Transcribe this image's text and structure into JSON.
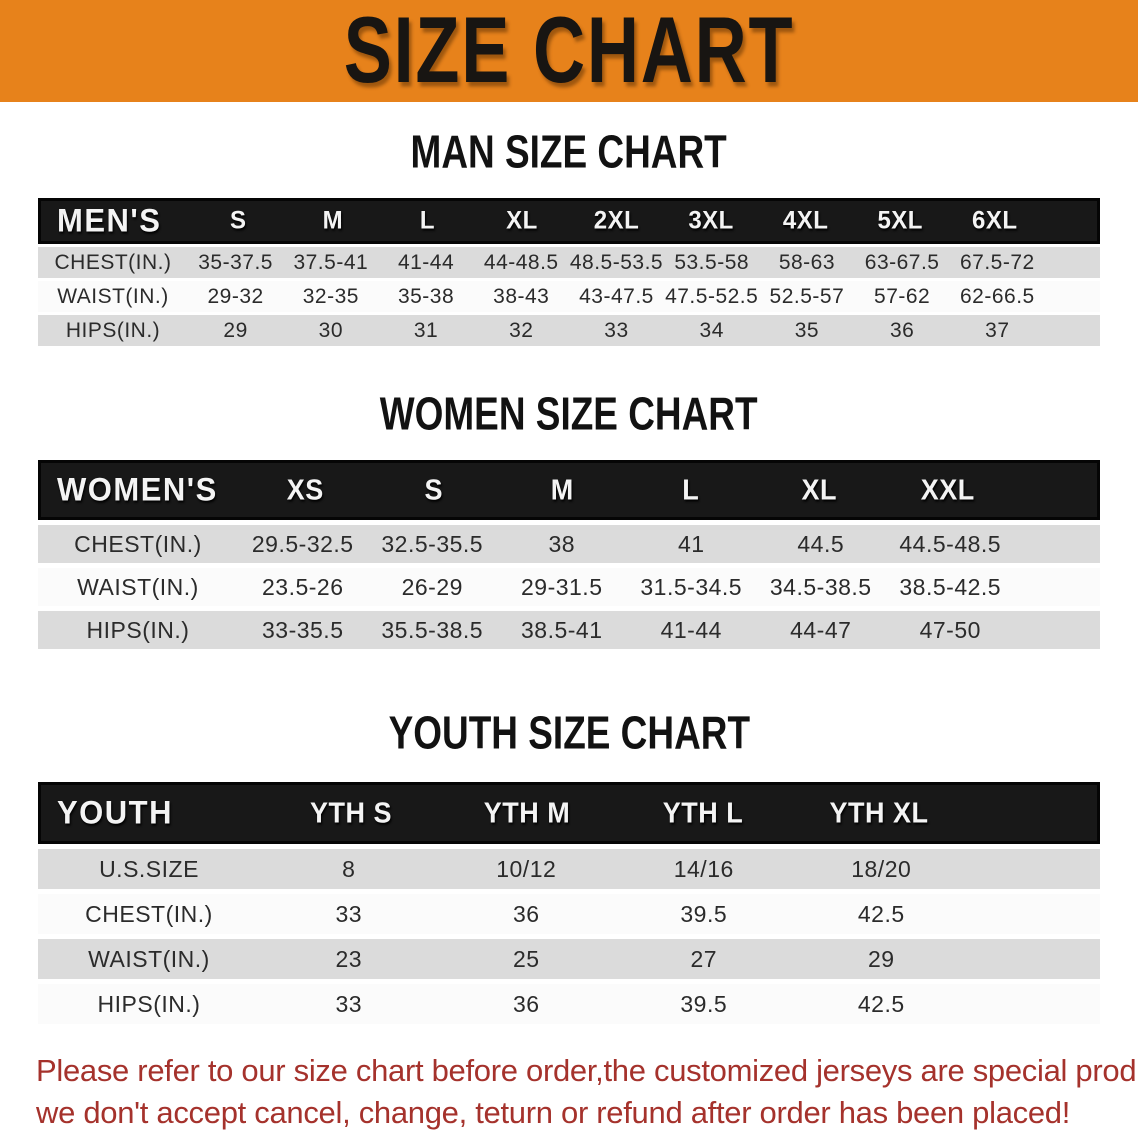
{
  "banner": {
    "title": "SIZE CHART",
    "bg_color": "#E7821B",
    "text_color": "#181512"
  },
  "sections": {
    "men": {
      "title": "MAN SIZE CHART",
      "table": {
        "header": [
          "MEN'S",
          "S",
          "M",
          "L",
          "XL",
          "2XL",
          "3XL",
          "4XL",
          "5XL",
          "6XL"
        ],
        "rows": [
          {
            "label": "CHEST(IN.)",
            "values": [
              "35-37.5",
              "37.5-41",
              "41-44",
              "44-48.5",
              "48.5-53.5",
              "53.5-58",
              "58-63",
              "63-67.5",
              "67.5-72"
            ]
          },
          {
            "label": "WAIST(IN.)",
            "values": [
              "29-32",
              "32-35",
              "35-38",
              "38-43",
              "43-47.5",
              "47.5-52.5",
              "52.5-57",
              "57-62",
              "62-66.5"
            ]
          },
          {
            "label": "HIPS(IN.)",
            "values": [
              "29",
              "30",
              "31",
              "32",
              "33",
              "34",
              "35",
              "36",
              "37"
            ]
          }
        ]
      }
    },
    "women": {
      "title": "WOMEN SIZE CHART",
      "table": {
        "header": [
          "WOMEN'S",
          "XS",
          "S",
          "M",
          "L",
          "XL",
          "XXL"
        ],
        "rows": [
          {
            "label": "CHEST(IN.)",
            "values": [
              "29.5-32.5",
              "32.5-35.5",
              "38",
              "41",
              "44.5",
              "44.5-48.5"
            ]
          },
          {
            "label": "WAIST(IN.)",
            "values": [
              "23.5-26",
              "26-29",
              "29-31.5",
              "31.5-34.5",
              "34.5-38.5",
              "38.5-42.5"
            ]
          },
          {
            "label": "HIPS(IN.)",
            "values": [
              "33-35.5",
              "35.5-38.5",
              "38.5-41",
              "41-44",
              "44-47",
              "47-50"
            ]
          }
        ]
      }
    },
    "youth": {
      "title": "YOUTH SIZE CHART",
      "table": {
        "header": [
          "YOUTH",
          "YTH S",
          "YTH M",
          "YTH L",
          "YTH XL"
        ],
        "rows": [
          {
            "label": "U.S.SIZE",
            "values": [
              "8",
              "10/12",
              "14/16",
              "18/20"
            ]
          },
          {
            "label": "CHEST(IN.)",
            "values": [
              "33",
              "36",
              "39.5",
              "42.5"
            ]
          },
          {
            "label": "WAIST(IN.)",
            "values": [
              "23",
              "25",
              "27",
              "29"
            ]
          },
          {
            "label": "HIPS(IN.)",
            "values": [
              "33",
              "36",
              "39.5",
              "42.5"
            ]
          }
        ]
      }
    }
  },
  "footer": {
    "line1": "Please refer to our size chart before order,the customized jerseys are special products,",
    "line2": "we don't accept cancel, change, teturn or refund after order has been placed!",
    "text_color": "#A5322C"
  },
  "colors": {
    "banner_orange": "#E7821B",
    "table_header_black": "#181818",
    "row_gray": "#DBDBDB",
    "row_white": "#FBFBFB",
    "footer_red": "#A5322C"
  }
}
